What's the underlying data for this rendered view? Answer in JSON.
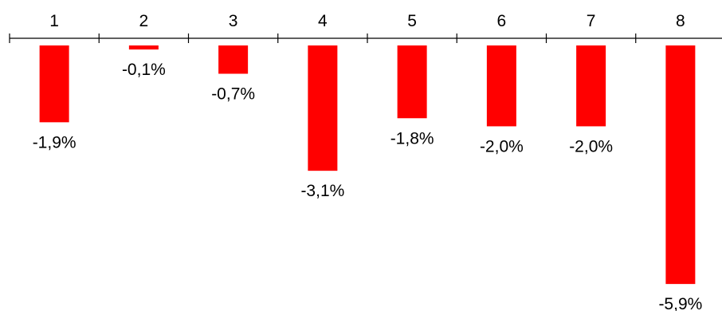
{
  "chart_data": {
    "type": "bar",
    "categories": [
      "1",
      "2",
      "3",
      "4",
      "5",
      "6",
      "7",
      "8"
    ],
    "values": [
      -1.9,
      -0.1,
      -0.7,
      -3.1,
      -1.8,
      -2.0,
      -2.0,
      -5.9
    ],
    "data_labels": [
      "-1,9%",
      "-0,1%",
      "-0,7%",
      "-3,1%",
      "-1,8%",
      "-2,0%",
      "-2,0%",
      "-5,9%"
    ],
    "x_axis_position": "top",
    "ylim": [
      -6.5,
      0
    ],
    "grid": false,
    "legend": "none",
    "bar_color": "#ff0000",
    "axis_color": "#000000"
  }
}
